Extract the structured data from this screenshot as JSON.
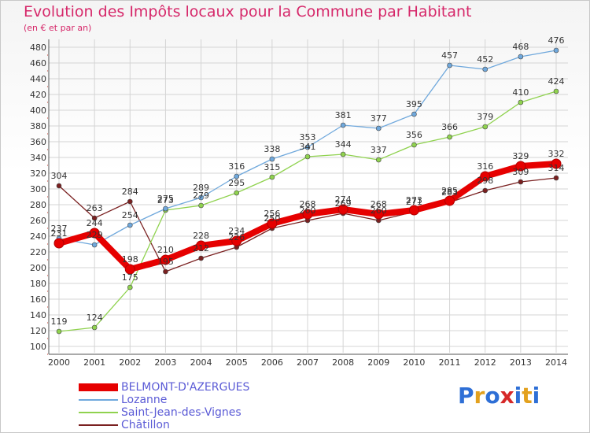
{
  "title": "Evolution des Impôts locaux pour la Commune par Habitant",
  "subtitle": "(en € et par an)",
  "logo": {
    "text": "Proxiti",
    "colors": [
      "#2e6fd6",
      "#e3a11e",
      "#2e6fd6",
      "#d62828",
      "#2e6fd6",
      "#e3a11e",
      "#2e6fd6"
    ]
  },
  "chart_data": {
    "type": "line",
    "title": "Evolution des Impôts locaux pour la Commune par Habitant",
    "ylabel": "(en € et par an)",
    "xlabel": "",
    "x": [
      "2000",
      "2001",
      "2002",
      "2003",
      "2004",
      "2005",
      "2006",
      "2007",
      "2008",
      "2009",
      "2010",
      "2011",
      "2012",
      "2013",
      "2014"
    ],
    "ylim": [
      100,
      480
    ],
    "yticks": [
      100,
      120,
      140,
      160,
      180,
      200,
      220,
      240,
      260,
      280,
      300,
      320,
      340,
      360,
      380,
      400,
      420,
      440,
      460,
      480
    ],
    "grid": true,
    "series": [
      {
        "name": "BELMONT-D'AZERGUES",
        "color": "#e60000",
        "values": [
          231,
          244,
          198,
          210,
          228,
          234,
          256,
          268,
          274,
          268,
          273,
          285,
          316,
          329,
          332
        ]
      },
      {
        "name": "Lozanne",
        "color": "#6fa8dc",
        "values": [
          237,
          229,
          254,
          275,
          289,
          316,
          338,
          353,
          381,
          377,
          395,
          457,
          452,
          468,
          476
        ]
      },
      {
        "name": "Saint-Jean-des-Vignes",
        "color": "#8fd24e",
        "values": [
          119,
          124,
          175,
          273,
          279,
          295,
          315,
          341,
          344,
          337,
          356,
          366,
          379,
          410,
          424
        ]
      },
      {
        "name": "Châtillon",
        "color": "#7a2020",
        "values": [
          304,
          263,
          284,
          195,
          212,
          226,
          250,
          260,
          269,
          260,
          271,
          283,
          298,
          309,
          314
        ]
      }
    ]
  }
}
